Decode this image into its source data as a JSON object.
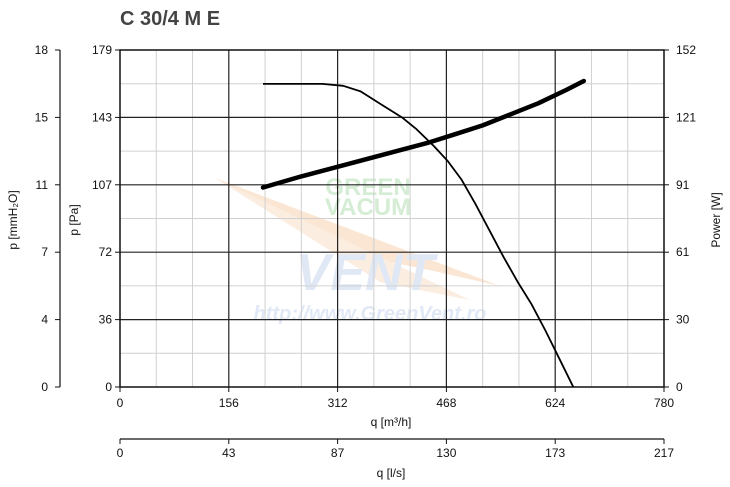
{
  "chart_data": {
    "type": "line",
    "title": "C 30/4 M E",
    "x": {
      "label": "q [m³/h]",
      "ticks": [
        0,
        156,
        312,
        468,
        624,
        780
      ],
      "range": [
        0,
        780
      ]
    },
    "x2": {
      "label": "q [l/s]",
      "ticks": [
        0,
        43,
        87,
        130,
        173,
        217
      ],
      "range": [
        0,
        217
      ]
    },
    "y_left_outer": {
      "label": "p [mmH₂O]",
      "ticks": [
        0,
        4,
        7,
        11,
        15,
        18
      ]
    },
    "y_left": {
      "label": "p [Pa]",
      "ticks": [
        0,
        36,
        72,
        107,
        143,
        179
      ],
      "range": [
        0,
        179
      ]
    },
    "y_right": {
      "label": "Power [W]",
      "ticks": [
        0,
        30,
        61,
        91,
        121,
        152
      ],
      "range": [
        0,
        152
      ]
    },
    "grid": true,
    "watermark": {
      "top": "GREEN",
      "middle": "VACUM",
      "brand": "VENT",
      "url": "http://www.GreenVent.ro"
    },
    "series": [
      {
        "axis": "y_left",
        "points": [
          [
            205,
            161
          ],
          [
            250,
            161
          ],
          [
            290,
            161
          ],
          [
            320,
            160
          ],
          [
            345,
            157
          ],
          [
            375,
            150
          ],
          [
            405,
            143
          ],
          [
            425,
            137
          ],
          [
            450,
            128
          ],
          [
            470,
            120
          ],
          [
            490,
            110
          ],
          [
            510,
            97
          ],
          [
            530,
            83
          ],
          [
            550,
            69
          ],
          [
            570,
            56
          ],
          [
            590,
            44
          ],
          [
            610,
            30
          ],
          [
            630,
            15
          ],
          [
            650,
            0
          ]
        ]
      },
      {
        "axis": "y_right",
        "points": [
          [
            205,
            90
          ],
          [
            260,
            95
          ],
          [
            320,
            100
          ],
          [
            380,
            105
          ],
          [
            440,
            110
          ],
          [
            480,
            114
          ],
          [
            520,
            118
          ],
          [
            560,
            123
          ],
          [
            600,
            128
          ],
          [
            640,
            134
          ],
          [
            665,
            138
          ]
        ]
      }
    ]
  }
}
